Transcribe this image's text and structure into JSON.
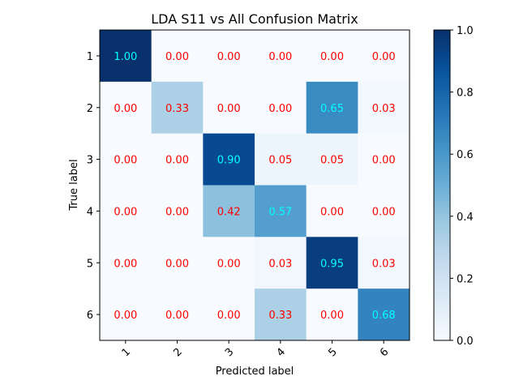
{
  "chart_data": {
    "type": "heatmap",
    "title": "LDA S11 vs All Confusion Matrix",
    "xlabel": "Predicted label",
    "ylabel": "True label",
    "x_categories": [
      "1",
      "2",
      "3",
      "4",
      "5",
      "6"
    ],
    "y_categories": [
      "1",
      "2",
      "3",
      "4",
      "5",
      "6"
    ],
    "matrix": [
      [
        1.0,
        0.0,
        0.0,
        0.0,
        0.0,
        0.0
      ],
      [
        0.0,
        0.33,
        0.0,
        0.0,
        0.65,
        0.03
      ],
      [
        0.0,
        0.0,
        0.9,
        0.05,
        0.05,
        0.0
      ],
      [
        0.0,
        0.0,
        0.42,
        0.57,
        0.0,
        0.0
      ],
      [
        0.0,
        0.0,
        0.0,
        0.03,
        0.95,
        0.03
      ],
      [
        0.0,
        0.0,
        0.0,
        0.33,
        0.0,
        0.68
      ]
    ],
    "cell_labels": [
      [
        "1.00",
        "0.00",
        "0.00",
        "0.00",
        "0.00",
        "0.00"
      ],
      [
        "0.00",
        "0.33",
        "0.00",
        "0.00",
        "0.65",
        "0.03"
      ],
      [
        "0.00",
        "0.00",
        "0.90",
        "0.05",
        "0.05",
        "0.00"
      ],
      [
        "0.00",
        "0.00",
        "0.42",
        "0.57",
        "0.00",
        "0.00"
      ],
      [
        "0.00",
        "0.00",
        "0.00",
        "0.03",
        "0.95",
        "0.03"
      ],
      [
        "0.00",
        "0.00",
        "0.00",
        "0.33",
        "0.00",
        "0.68"
      ]
    ],
    "colormap": "Blues",
    "value_range": [
      0.0,
      1.0
    ],
    "colorbar_ticks": [
      "0.0",
      "0.2",
      "0.4",
      "0.6",
      "0.8",
      "1.0"
    ],
    "label_color_high": "#00ffff",
    "label_color_low": "#ff0000",
    "label_threshold": 0.5,
    "x_tick_rotation": 45
  }
}
